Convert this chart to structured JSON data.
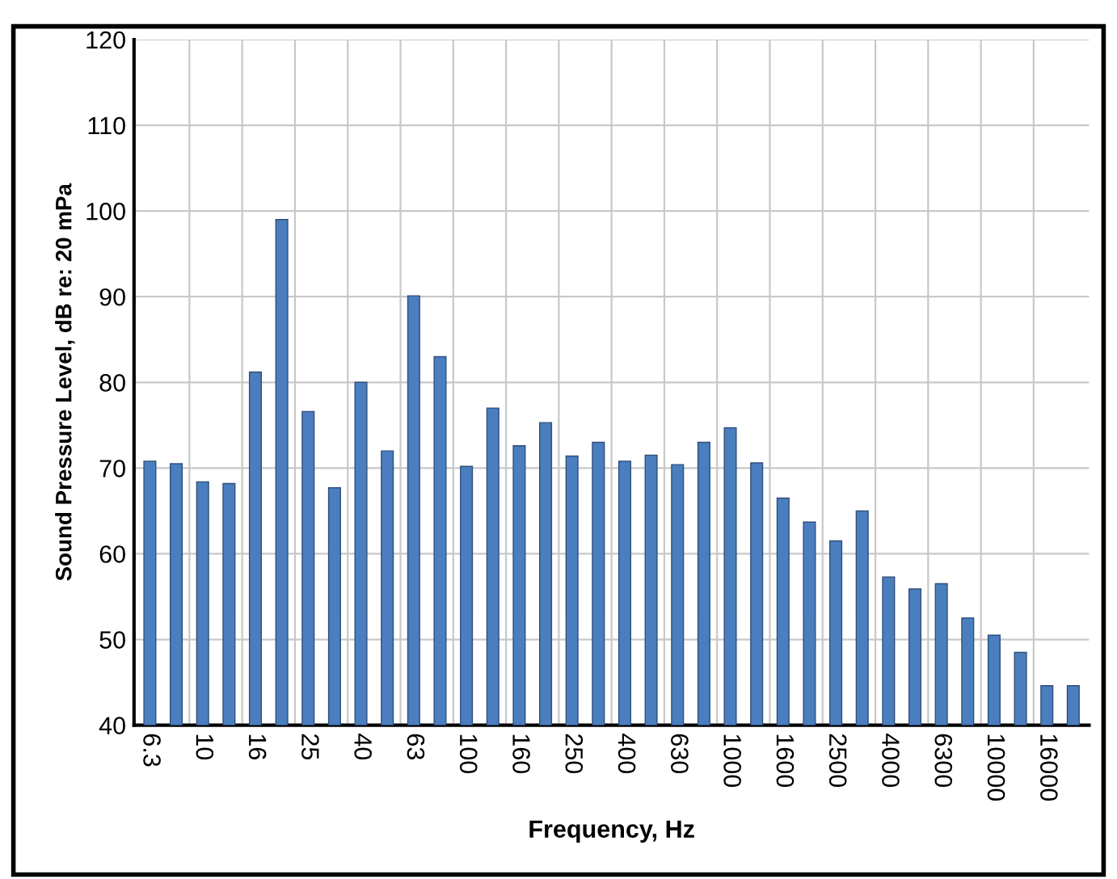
{
  "chart_data": {
    "type": "bar",
    "xlabel": "Frequency, Hz",
    "ylabel": "Sound Pressure Level, dB re: 20 mPa",
    "categories": [
      "6.3",
      null,
      "10",
      null,
      "16",
      null,
      "25",
      null,
      "40",
      null,
      "63",
      null,
      "100",
      null,
      "160",
      null,
      "250",
      null,
      "400",
      null,
      "630",
      null,
      "1000",
      null,
      "1600",
      null,
      "2500",
      null,
      "4000",
      null,
      "6300",
      null,
      "10000",
      null,
      "16000",
      null
    ],
    "values": [
      70.8,
      70.5,
      68.4,
      68.2,
      81.2,
      99,
      76.6,
      67.7,
      80,
      72,
      90.1,
      83,
      70.2,
      77,
      72.6,
      75.3,
      71.4,
      73,
      70.8,
      71.5,
      70.4,
      73,
      74.7,
      70.6,
      66.5,
      63.7,
      61.5,
      65,
      57.3,
      55.9,
      56.5,
      52.5,
      50.5,
      48.5,
      44.6,
      44.6
    ],
    "color": "#4a7ebf",
    "ylim": [
      40,
      120
    ],
    "yticks": [
      40,
      50,
      60,
      70,
      80,
      90,
      100,
      110,
      120
    ],
    "grid": true
  }
}
